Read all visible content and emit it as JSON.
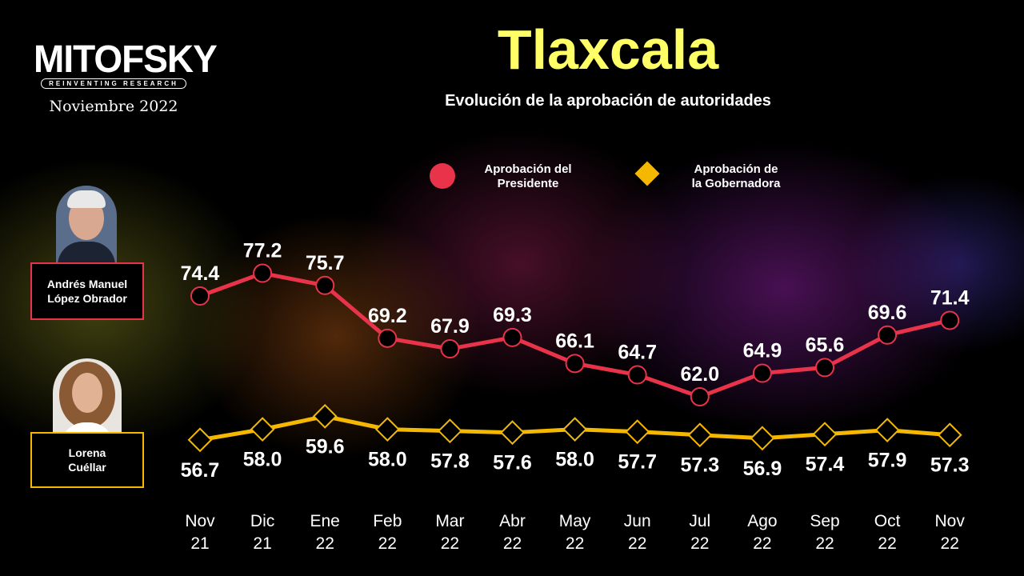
{
  "logo": {
    "brand": "MITOFSKY",
    "tagline": "REINVENTING RESEARCH"
  },
  "date_label": "Noviembre 2022",
  "people": [
    {
      "name_line1": "Andrés Manuel",
      "name_line2": "López Obrador",
      "color": "#e8334a"
    },
    {
      "name_line1": "Lorena",
      "name_line2": "Cuéllar",
      "color": "#f5b800"
    }
  ],
  "chart_data": {
    "type": "line",
    "title": "Tlaxcala",
    "subtitle": "Evolución de la aprobación de autoridades",
    "categories": [
      [
        "Nov",
        "21"
      ],
      [
        "Dic",
        "21"
      ],
      [
        "Ene",
        "22"
      ],
      [
        "Feb",
        "22"
      ],
      [
        "Mar",
        "22"
      ],
      [
        "Abr",
        "22"
      ],
      [
        "May",
        "22"
      ],
      [
        "Jun",
        "22"
      ],
      [
        "Jul",
        "22"
      ],
      [
        "Ago",
        "22"
      ],
      [
        "Sep",
        "22"
      ],
      [
        "Oct",
        "22"
      ],
      [
        "Nov",
        "22"
      ]
    ],
    "series": [
      {
        "name": "Aprobación del Presidente",
        "legend_line1": "Aprobación del",
        "legend_line2": "Presidente",
        "marker": "circle",
        "color": "#e8334a",
        "values": [
          74.4,
          77.2,
          75.7,
          69.2,
          67.9,
          69.3,
          66.1,
          64.7,
          62.0,
          64.9,
          65.6,
          69.6,
          71.4
        ]
      },
      {
        "name": "Aprobación de la Gobernadora",
        "legend_line1": "Aprobación de",
        "legend_line2": "la Gobernadora",
        "marker": "diamond",
        "color": "#f5b800",
        "values": [
          56.7,
          58.0,
          59.6,
          58.0,
          57.8,
          57.6,
          58.0,
          57.7,
          57.3,
          56.9,
          57.4,
          57.9,
          57.3
        ]
      }
    ],
    "grid": false,
    "legend_position": "top"
  }
}
